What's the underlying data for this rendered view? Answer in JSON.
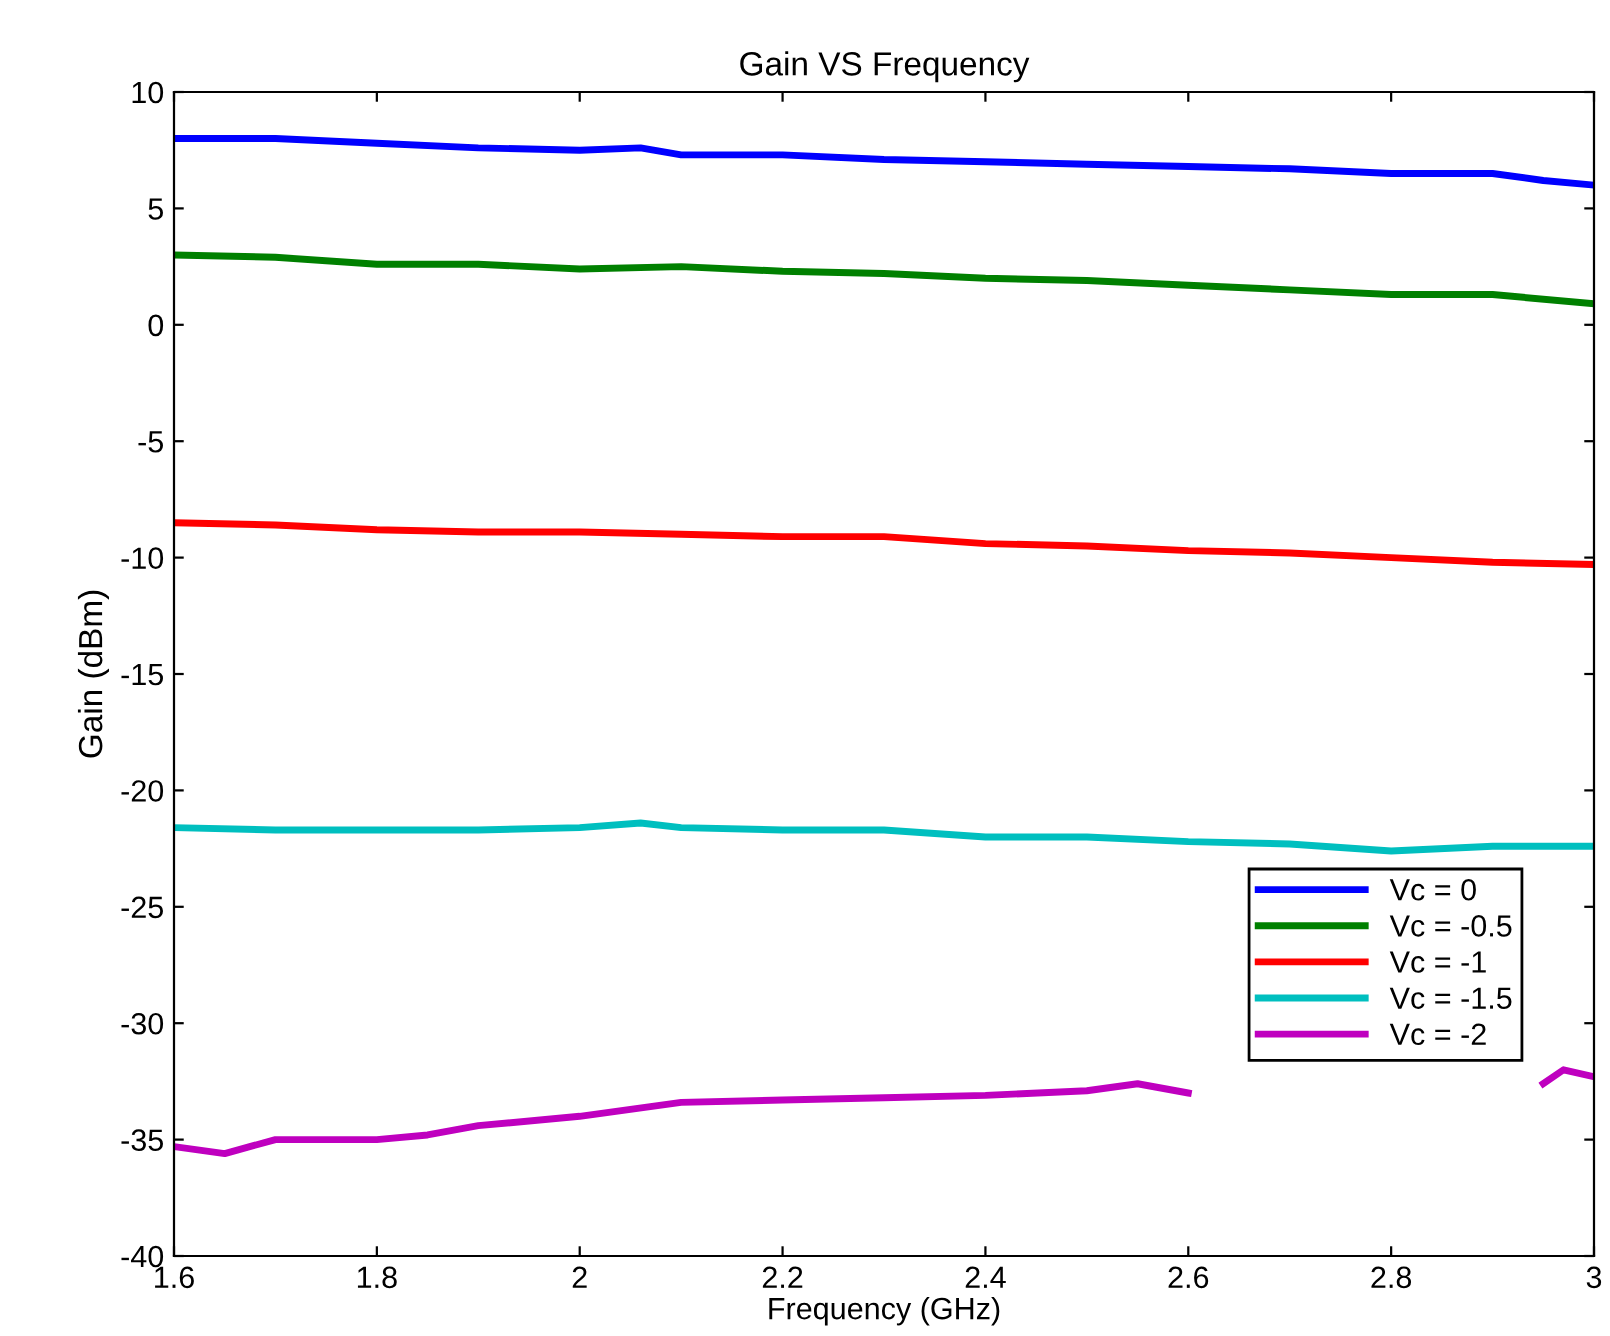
{
  "chart_data": {
    "type": "line",
    "title": "Gain VS Frequency",
    "xlabel": "Frequency (GHz)",
    "ylabel": "Gain (dBm)",
    "xlim": [
      1.6,
      3
    ],
    "xticks": [
      1.6,
      1.8,
      2,
      2.2,
      2.4,
      2.6,
      2.8,
      3
    ],
    "ylim": [
      -40,
      10
    ],
    "yticks": [
      -40,
      -35,
      -30,
      -25,
      -20,
      -15,
      -10,
      -5,
      0,
      5,
      10
    ],
    "grid": false,
    "legend": "bottom right",
    "line_style": "solid",
    "marker": "none",
    "series": [
      {
        "name": "Vc = 0",
        "color": "#0000ff",
        "x": [
          1.6,
          1.7,
          1.8,
          1.9,
          2.0,
          2.06,
          2.1,
          2.2,
          2.3,
          2.4,
          2.5,
          2.6,
          2.7,
          2.8,
          2.9,
          2.95,
          3.0
        ],
        "values": [
          8.0,
          8.0,
          7.8,
          7.6,
          7.5,
          7.6,
          7.3,
          7.3,
          7.1,
          7.0,
          6.9,
          6.8,
          6.7,
          6.5,
          6.5,
          6.2,
          6.0
        ]
      },
      {
        "name": "Vc = -0.5",
        "color": "#008000",
        "x": [
          1.6,
          1.7,
          1.8,
          1.9,
          2.0,
          2.1,
          2.2,
          2.3,
          2.4,
          2.5,
          2.6,
          2.7,
          2.8,
          2.9,
          3.0
        ],
        "values": [
          3.0,
          2.9,
          2.6,
          2.6,
          2.4,
          2.5,
          2.3,
          2.2,
          2.0,
          1.9,
          1.7,
          1.5,
          1.3,
          1.3,
          0.9
        ]
      },
      {
        "name": "Vc = -1",
        "color": "#ff0000",
        "x": [
          1.6,
          1.7,
          1.8,
          1.9,
          2.0,
          2.1,
          2.2,
          2.3,
          2.4,
          2.5,
          2.6,
          2.7,
          2.8,
          2.9,
          3.0
        ],
        "values": [
          -8.5,
          -8.6,
          -8.8,
          -8.9,
          -8.9,
          -9.0,
          -9.1,
          -9.1,
          -9.4,
          -9.5,
          -9.7,
          -9.8,
          -10.0,
          -10.2,
          -10.3
        ]
      },
      {
        "name": "Vc = -1.5",
        "color": "#00bfbf",
        "x": [
          1.6,
          1.7,
          1.8,
          1.9,
          2.0,
          2.06,
          2.1,
          2.2,
          2.3,
          2.4,
          2.5,
          2.6,
          2.7,
          2.8,
          2.9,
          3.0
        ],
        "values": [
          -21.6,
          -21.7,
          -21.7,
          -21.7,
          -21.6,
          -21.4,
          -21.6,
          -21.7,
          -21.7,
          -22.0,
          -22.0,
          -22.2,
          -22.3,
          -22.6,
          -22.4,
          -22.4
        ]
      },
      {
        "name": "Vc = -2",
        "color": "#bf00bf",
        "x": [
          1.6,
          1.65,
          1.7,
          1.8,
          1.85,
          1.9,
          2.0,
          2.1,
          2.2,
          2.3,
          2.4,
          2.5,
          2.55,
          2.6,
          2.62,
          2.94,
          2.95,
          2.97,
          3.0
        ],
        "values": [
          -35.3,
          -35.6,
          -35.0,
          -35.0,
          -34.8,
          -34.4,
          -34.0,
          -33.4,
          -33.3,
          -33.2,
          -33.1,
          -32.9,
          -32.6,
          -33.0,
          null,
          null,
          -32.6,
          -32.0,
          -32.3
        ]
      }
    ]
  }
}
